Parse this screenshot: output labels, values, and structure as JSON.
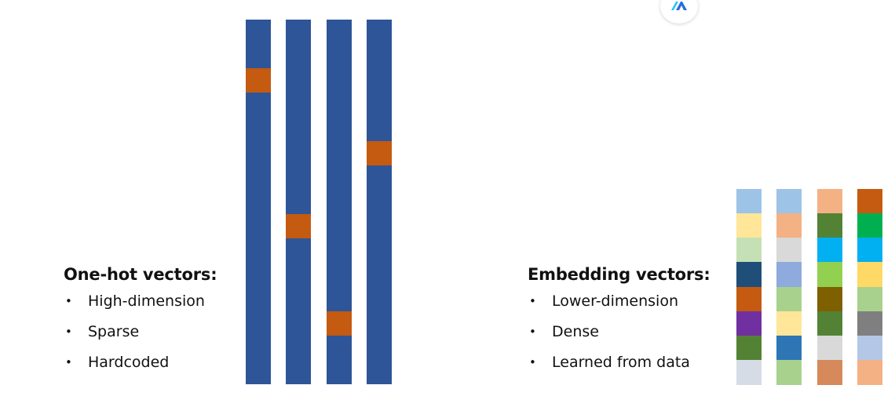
{
  "onehot": {
    "title": "One-hot vectors:",
    "bullets": [
      "High-dimension",
      "Sparse",
      "Hardcoded"
    ],
    "vectors": [
      {
        "hot_index": 2
      },
      {
        "hot_index": 8
      },
      {
        "hot_index": 12
      },
      {
        "hot_index": 5
      }
    ],
    "length": 15,
    "base_color": "#2E5597",
    "hot_color": "#C55A11"
  },
  "embedding": {
    "title": "Embedding vectors:",
    "bullets": [
      "Lower-dimension",
      "Dense",
      "Learned from data"
    ],
    "vectors": [
      [
        "#9DC3E6",
        "#FFE699",
        "#C5E0B4",
        "#1F4E79",
        "#C55A11",
        "#7030A0",
        "#548235",
        "#D6DCE5"
      ],
      [
        "#9DC3E6",
        "#F4B183",
        "#D9D9D9",
        "#8FAADC",
        "#A9D18E",
        "#FFE699",
        "#2E75B6",
        "#A9D18E"
      ],
      [
        "#F4B183",
        "#548235",
        "#00B0F0",
        "#92D050",
        "#7F6000",
        "#548235",
        "#D9D9D9",
        "#D6895A"
      ],
      [
        "#C55A11",
        "#00B050",
        "#00B0F0",
        "#FFD966",
        "#A9D18E",
        "#7F7F7F",
        "#B4C7E7",
        "#F4B183"
      ]
    ]
  },
  "logo": {
    "icon": "compass-a-logo-icon",
    "colors": [
      "#29C4F6",
      "#2B6BE0"
    ]
  }
}
